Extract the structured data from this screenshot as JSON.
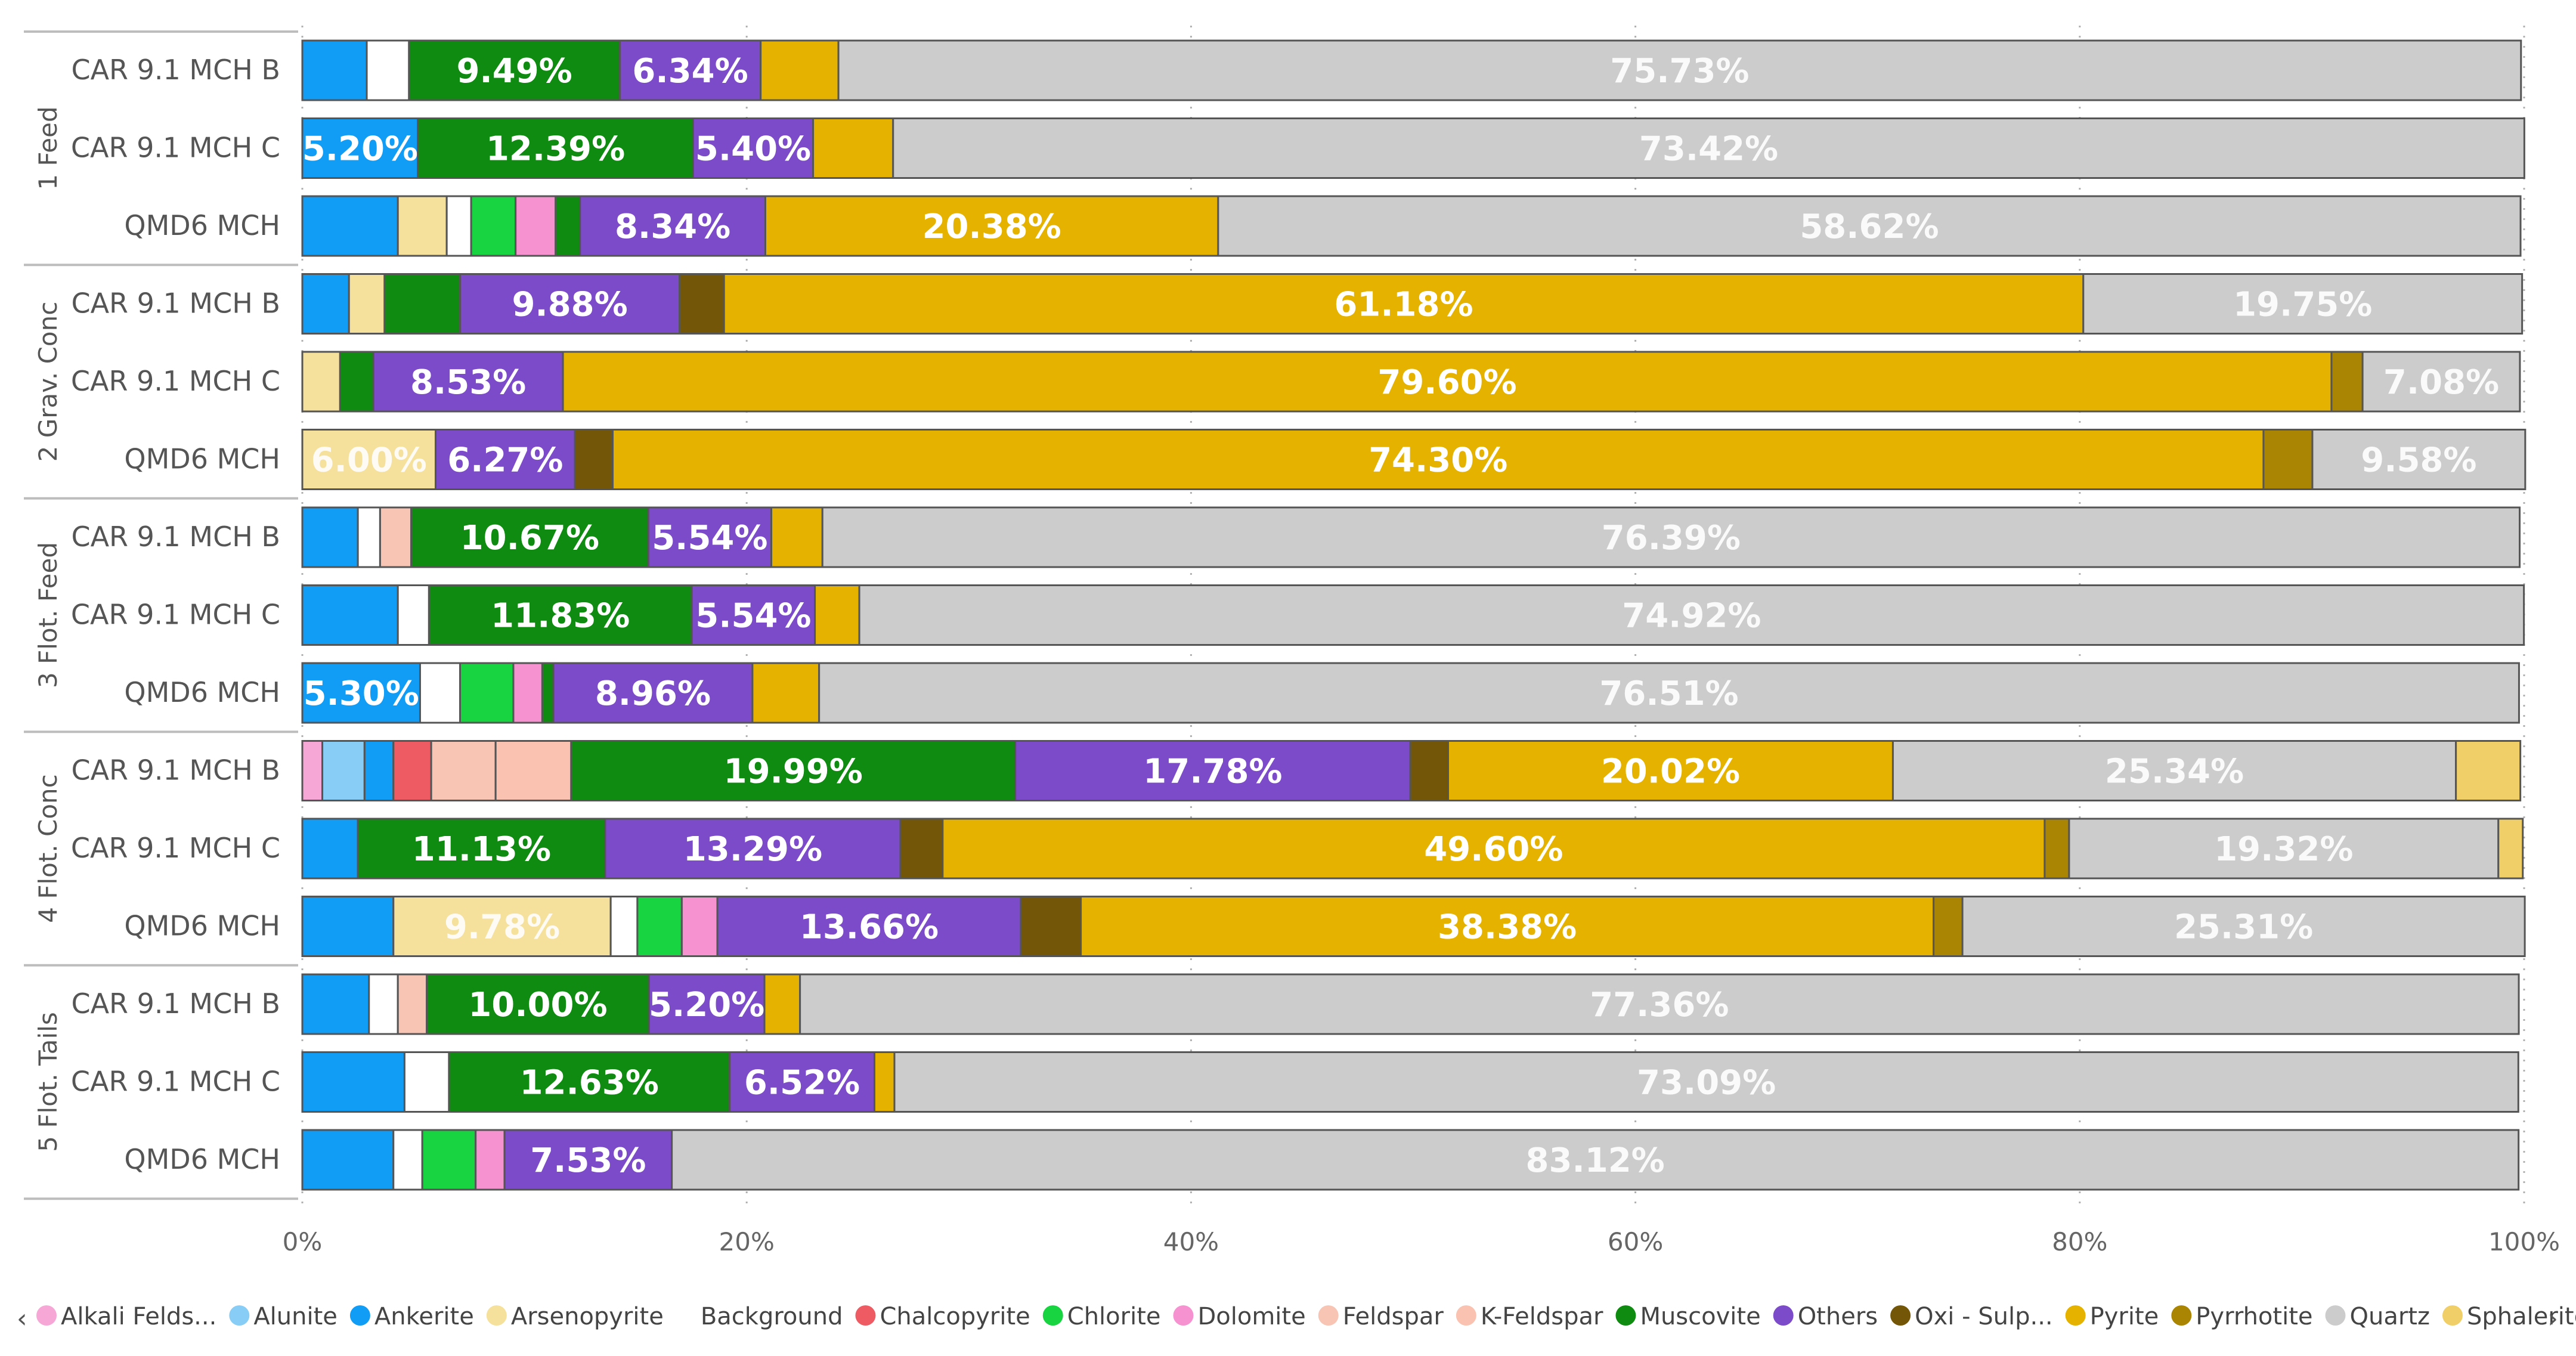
{
  "chart_data": {
    "type": "bar",
    "orientation": "horizontal",
    "stacked": "100%",
    "xlim": [
      0,
      100
    ],
    "xticks": [
      "0%",
      "20%",
      "40%",
      "60%",
      "80%",
      "100%"
    ],
    "grid": "dotted vertical",
    "legend_position": "bottom",
    "groups": [
      {
        "name": "1 Feed",
        "rows": [
          "CAR 9.1 MCH B",
          "CAR 9.1 MCH C",
          "QMD6 MCH"
        ]
      },
      {
        "name": "2 Grav. Conc",
        "rows": [
          "CAR 9.1 MCH B",
          "CAR 9.1 MCH C",
          "QMD6 MCH"
        ]
      },
      {
        "name": "3 Flot. Feed",
        "rows": [
          "CAR 9.1 MCH B",
          "CAR 9.1 MCH C",
          "QMD6 MCH"
        ]
      },
      {
        "name": "4 Flot. Conc",
        "rows": [
          "CAR 9.1 MCH B",
          "CAR 9.1 MCH C",
          "QMD6 MCH"
        ]
      },
      {
        "name": "5 Flot. Tails",
        "rows": [
          "CAR 9.1 MCH B",
          "CAR 9.1 MCH C",
          "QMD6 MCH"
        ]
      }
    ],
    "series": [
      {
        "name": "Alkali Felds...",
        "color": "#f6a7d6",
        "values": [
          0,
          0,
          0,
          0,
          0,
          0,
          0,
          0,
          0,
          0.9,
          0,
          0,
          0,
          0,
          0
        ]
      },
      {
        "name": "Alunite",
        "color": "#88cdf6",
        "values": [
          0,
          0,
          0,
          0,
          0,
          0,
          0,
          0,
          0,
          1.9,
          0,
          0,
          0,
          0,
          0
        ]
      },
      {
        "name": "Ankerite",
        "color": "#119cf5",
        "values": [
          2.9,
          5.2,
          4.3,
          2.1,
          0,
          0,
          2.5,
          4.3,
          5.3,
          1.3,
          2.5,
          4.1,
          3.0,
          4.6,
          4.1
        ]
      },
      {
        "name": "Arsenopyrite",
        "color": "#f5e09c",
        "values": [
          0,
          0,
          2.2,
          1.6,
          1.7,
          6.0,
          0,
          0,
          0,
          0,
          0,
          9.78,
          0,
          0,
          0
        ]
      },
      {
        "name": "Background",
        "color": "#ffffff",
        "values": [
          1.9,
          0,
          1.1,
          0,
          0,
          0,
          1.0,
          1.4,
          1.8,
          0,
          0,
          1.2,
          1.3,
          2.0,
          1.3
        ]
      },
      {
        "name": "Chalcopyrite",
        "color": "#ef5b63",
        "values": [
          0,
          0,
          0,
          0,
          0,
          0,
          0,
          0,
          0,
          1.7,
          0,
          0,
          0,
          0,
          0
        ]
      },
      {
        "name": "Chlorite",
        "color": "#17d440",
        "values": [
          0,
          0,
          2.0,
          0,
          0,
          0,
          0,
          0,
          2.4,
          0,
          0,
          2.0,
          0,
          0,
          2.4
        ]
      },
      {
        "name": "Dolomite",
        "color": "#f592cf",
        "values": [
          0,
          0,
          1.8,
          0,
          0,
          0,
          0,
          0,
          1.3,
          0,
          0,
          1.6,
          0,
          0,
          1.3
        ]
      },
      {
        "name": "Feldspar",
        "color": "#f8c4b4",
        "values": [
          0,
          0,
          0,
          0,
          0,
          0,
          1.4,
          0,
          0,
          2.9,
          0,
          0,
          1.3,
          0,
          0
        ]
      },
      {
        "name": "K-Feldspar",
        "color": "#fac3b1",
        "values": [
          0,
          0,
          0,
          0,
          0,
          0,
          0,
          0,
          0,
          3.4,
          0,
          0,
          0,
          0,
          0
        ]
      },
      {
        "name": "Muscovite",
        "color": "#0f8b11",
        "values": [
          9.49,
          12.39,
          1.1,
          3.4,
          1.5,
          0,
          10.67,
          11.83,
          0.5,
          19.99,
          11.13,
          0,
          10.0,
          12.63,
          0
        ]
      },
      {
        "name": "Others",
        "color": "#7b4bc9",
        "values": [
          6.34,
          5.4,
          8.34,
          9.88,
          8.53,
          6.27,
          5.54,
          5.54,
          8.96,
          17.78,
          13.29,
          13.66,
          5.2,
          6.52,
          7.53
        ]
      },
      {
        "name": "Oxi - Sulp...",
        "color": "#735607",
        "values": [
          0,
          0,
          0,
          2.0,
          0,
          1.7,
          0,
          0,
          0,
          1.7,
          1.9,
          2.7,
          0,
          0,
          0
        ]
      },
      {
        "name": "Pyrite",
        "color": "#e5b200",
        "values": [
          3.5,
          3.6,
          20.38,
          61.18,
          79.6,
          74.3,
          2.3,
          2.0,
          3.0,
          20.02,
          49.6,
          38.38,
          1.6,
          0.9,
          0
        ]
      },
      {
        "name": "Pyrrhotite",
        "color": "#aa8504",
        "values": [
          0,
          0,
          0,
          0,
          1.4,
          2.2,
          0,
          0,
          0,
          0,
          1.1,
          1.3,
          0,
          0,
          0
        ]
      },
      {
        "name": "Quartz",
        "color": "#cccccc",
        "values": [
          75.73,
          73.42,
          58.62,
          19.75,
          7.08,
          9.58,
          76.39,
          74.92,
          76.51,
          25.34,
          19.32,
          25.31,
          77.36,
          73.09,
          83.12
        ]
      },
      {
        "name": "Sphalerite",
        "color": "#f0cf68",
        "values": [
          0,
          0,
          0,
          0,
          0,
          0,
          0,
          0,
          0,
          2.9,
          1.1,
          0,
          0,
          0,
          0
        ]
      }
    ]
  }
}
